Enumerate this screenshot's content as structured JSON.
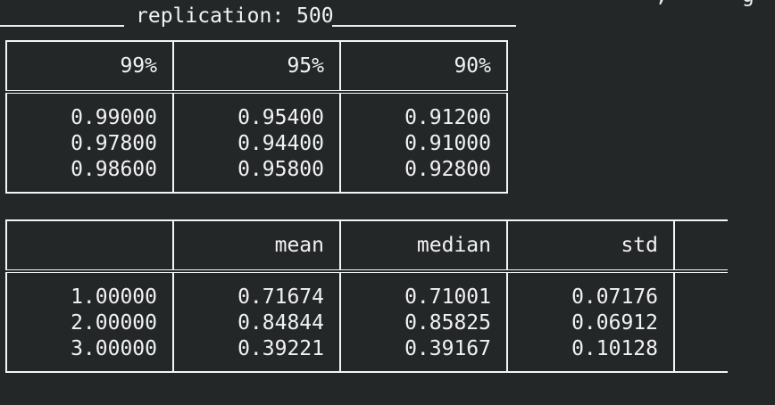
{
  "header": {
    "top_clipped_text": "                                                     ,      g",
    "replication_label": "replication: 500"
  },
  "coverage_table": {
    "columns": [
      "99%",
      "95%",
      "90%"
    ],
    "rows": [
      [
        "0.99000",
        "0.95400",
        "0.91200"
      ],
      [
        "0.97800",
        "0.94400",
        "0.91000"
      ],
      [
        "0.98600",
        "0.95800",
        "0.92800"
      ]
    ]
  },
  "stats_table": {
    "columns": [
      "",
      "mean",
      "median",
      "std",
      ""
    ],
    "rows": [
      [
        "1.00000",
        "0.71674",
        "0.71001",
        "0.07176",
        ""
      ],
      [
        "2.00000",
        "0.84844",
        "0.85825",
        "0.06912",
        ""
      ],
      [
        "3.00000",
        "0.39221",
        "0.39167",
        "0.10128",
        ""
      ]
    ]
  }
}
